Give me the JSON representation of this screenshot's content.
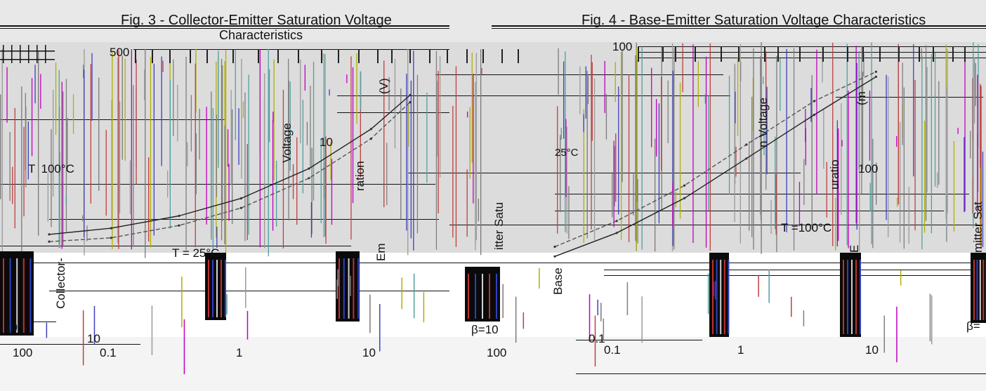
{
  "chart_data": [
    {
      "type": "line",
      "title": "Fig. 3 - Collector-Emitter Saturation Voltage Characteristics",
      "ylabel": "Collector-Emitter Saturation Voltage (V)",
      "xlabel": "",
      "xscale": "log",
      "yscale": "log",
      "xlim": [
        0.1,
        100
      ],
      "ylim": [
        10,
        500
      ],
      "x_ticks": [
        "0.1",
        "1",
        "10",
        "100"
      ],
      "y_ticks": [
        "500",
        "10"
      ],
      "annotations": [
        "T = 100°C",
        "T = 25°C",
        "β=10"
      ],
      "series": [
        {
          "name": "T = 100°C",
          "x": [
            0.1,
            0.3,
            1,
            3,
            10,
            30,
            60
          ],
          "y": [
            13,
            15,
            20,
            30,
            60,
            150,
            330
          ]
        },
        {
          "name": "T = 25°C",
          "x": [
            0.1,
            0.3,
            1,
            3,
            10,
            30,
            60
          ],
          "y": [
            11,
            12,
            16,
            24,
            48,
            120,
            280
          ]
        }
      ]
    },
    {
      "type": "line",
      "title": "Fig. 4 - Base-Emitter Saturation Voltage Characteristics",
      "ylabel": "Base-Emitter Saturation Voltage (mV)",
      "xlabel": "",
      "xscale": "log",
      "yscale": "log",
      "xlim": [
        0.1,
        100
      ],
      "ylim": [
        0.1,
        100
      ],
      "x_ticks": [
        "0.1",
        "1",
        "10"
      ],
      "y_ticks": [
        "100",
        "0.1"
      ],
      "annotations": [
        "T =100°C",
        "25°C",
        "β="
      ],
      "series": [
        {
          "name": "T =100°C",
          "x": [
            0.1,
            0.3,
            1,
            3,
            10,
            30
          ],
          "y": [
            0.18,
            0.4,
            1.3,
            5,
            22,
            80
          ]
        },
        {
          "name": "25°C",
          "x": [
            0.1,
            0.3,
            1,
            3,
            10,
            30
          ],
          "y": [
            0.25,
            0.6,
            2,
            8,
            35,
            95
          ]
        }
      ]
    }
  ],
  "fig3": {
    "title_line1": "Fig. 3 - Collector-Emitter Saturation Voltage",
    "title_line2": "Characteristics",
    "ylabel_left": "Collector-",
    "ylabel_mid": "Voltage",
    "ylabel_ration": "ration",
    "ylabel_v": "(V)",
    "ylabel_em": "Em",
    "ytick_top": "500",
    "ytick_mid": "10",
    "ytick_bottom": "10",
    "temp_100": "T  100°C",
    "temp_25": "T = 25°C",
    "beta": "β=10",
    "leftover_10": "10",
    "x_ticks": [
      "100",
      "0.1",
      "1",
      "10",
      "100"
    ]
  },
  "fig4": {
    "title": "Fig. 4 - Base-Emitter Saturation Voltage Characteristics",
    "ylabel_voltage": "n Voltage",
    "ylabel_itter": "itter Satu",
    "ylabel_mit": "mitter Sat",
    "ylabel_ration": "uratio",
    "ylabel_mv": "(m",
    "ylabel_base": "Base",
    "ylabel_e": "E",
    "ytick_top": "100",
    "ytick_mid": "100",
    "ytick_bottom": "0.1",
    "temp_100": "T =100°C",
    "temp_25": "25°C",
    "beta": "β=",
    "x_ticks": [
      "0.1",
      "1",
      "10"
    ]
  }
}
